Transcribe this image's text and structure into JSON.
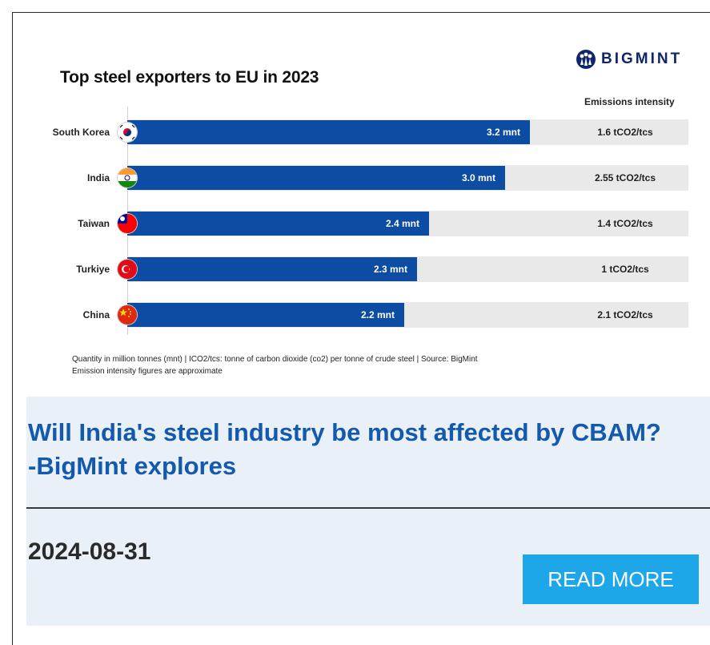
{
  "infographic": {
    "title": "Top steel exporters to EU in 2023",
    "brand": "BIGMINT",
    "emissions_header": "Emissions intensity",
    "rows": [
      {
        "country": "South Korea",
        "flag": "south-korea-flag-icon",
        "bar_label": "3.2 mnt",
        "emissions": "1.6 tCO2/tcs"
      },
      {
        "country": "India",
        "flag": "india-flag-icon",
        "bar_label": "3.0 mnt",
        "emissions": "2.55 tCO2/tcs"
      },
      {
        "country": "Taiwan",
        "flag": "taiwan-flag-icon",
        "bar_label": "2.4 mnt",
        "emissions": "1.4 tCO2/tcs"
      },
      {
        "country": "Turkiye",
        "flag": "turkiye-flag-icon",
        "bar_label": "2.3 mnt",
        "emissions": "1 tCO2/tcs"
      },
      {
        "country": "China",
        "flag": "china-flag-icon",
        "bar_label": "2.2 mnt",
        "emissions": "2.1 tCO2/tcs"
      }
    ],
    "footnote_1": "Quantity in million tonnes (mnt) | ICO2/tcs: tonne of carbon dioxide (co2) per tonne of crude steel | Source: BigMint",
    "footnote_2": "Emission intensity figures are approximate"
  },
  "chart_data": {
    "type": "bar",
    "title": "Top steel exporters to EU in 2023",
    "categories": [
      "South Korea",
      "India",
      "Taiwan",
      "Turkiye",
      "China"
    ],
    "values": [
      3.2,
      3.0,
      2.4,
      2.3,
      2.2
    ],
    "emissions_intensity": [
      1.6,
      2.55,
      1.4,
      1,
      2.1
    ],
    "value_labels": [
      "3.2 mnt",
      "3.0 mnt",
      "2.4 mnt",
      "2.3 mnt",
      "2.2 mnt"
    ],
    "orientation": "horizontal",
    "grid": false
  },
  "article": {
    "headline": "Will India's steel industry be most affected by CBAM?-BigMint explores",
    "date": "2024-08-31",
    "read_more_label": "READ MORE"
  },
  "colors": {
    "bar": "#0c4ca3",
    "headline": "#1359ad",
    "button": "#1da6e8",
    "card_bg": "#e9f0f8"
  }
}
